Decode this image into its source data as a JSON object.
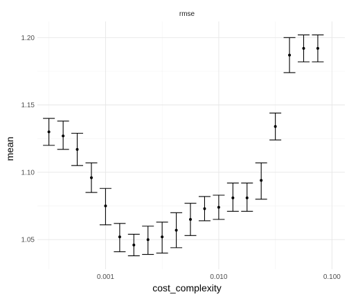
{
  "chart_data": {
    "type": "scatter",
    "facet_label": "rmse",
    "xlabel": "cost_complexity",
    "ylabel": "mean",
    "x_scale": "log10",
    "xlim": [
      0.00025,
      0.13
    ],
    "ylim": [
      1.028,
      1.212
    ],
    "x_ticks": [
      {
        "value": 0.001,
        "label": "0.001"
      },
      {
        "value": 0.01,
        "label": "0.010"
      },
      {
        "value": 0.1,
        "label": "0.100"
      }
    ],
    "y_ticks": [
      {
        "value": 1.05,
        "label": "1.05"
      },
      {
        "value": 1.1,
        "label": "1.10"
      },
      {
        "value": 1.15,
        "label": "1.15"
      },
      {
        "value": 1.2,
        "label": "1.20"
      }
    ],
    "grid": true,
    "points": [
      {
        "x": 0.000316,
        "mean": 1.13,
        "lower": 1.12,
        "upper": 1.14
      },
      {
        "x": 0.000422,
        "mean": 1.127,
        "lower": 1.117,
        "upper": 1.138
      },
      {
        "x": 0.000562,
        "mean": 1.117,
        "lower": 1.105,
        "upper": 1.129
      },
      {
        "x": 0.00075,
        "mean": 1.096,
        "lower": 1.085,
        "upper": 1.107
      },
      {
        "x": 0.001,
        "mean": 1.075,
        "lower": 1.061,
        "upper": 1.088
      },
      {
        "x": 0.001334,
        "mean": 1.052,
        "lower": 1.041,
        "upper": 1.062
      },
      {
        "x": 0.001778,
        "mean": 1.046,
        "lower": 1.038,
        "upper": 1.054
      },
      {
        "x": 0.002371,
        "mean": 1.05,
        "lower": 1.039,
        "upper": 1.06
      },
      {
        "x": 0.003162,
        "mean": 1.052,
        "lower": 1.04,
        "upper": 1.063
      },
      {
        "x": 0.004217,
        "mean": 1.057,
        "lower": 1.044,
        "upper": 1.07
      },
      {
        "x": 0.005623,
        "mean": 1.065,
        "lower": 1.053,
        "upper": 1.077
      },
      {
        "x": 0.007499,
        "mean": 1.073,
        "lower": 1.064,
        "upper": 1.082
      },
      {
        "x": 0.01,
        "mean": 1.074,
        "lower": 1.065,
        "upper": 1.083
      },
      {
        "x": 0.013335,
        "mean": 1.081,
        "lower": 1.071,
        "upper": 1.092
      },
      {
        "x": 0.017783,
        "mean": 1.081,
        "lower": 1.071,
        "upper": 1.092
      },
      {
        "x": 0.023714,
        "mean": 1.094,
        "lower": 1.08,
        "upper": 1.107
      },
      {
        "x": 0.031623,
        "mean": 1.134,
        "lower": 1.124,
        "upper": 1.144
      },
      {
        "x": 0.04217,
        "mean": 1.187,
        "lower": 1.174,
        "upper": 1.2
      },
      {
        "x": 0.056234,
        "mean": 1.192,
        "lower": 1.182,
        "upper": 1.202
      },
      {
        "x": 0.074989,
        "mean": 1.192,
        "lower": 1.182,
        "upper": 1.202
      }
    ]
  }
}
